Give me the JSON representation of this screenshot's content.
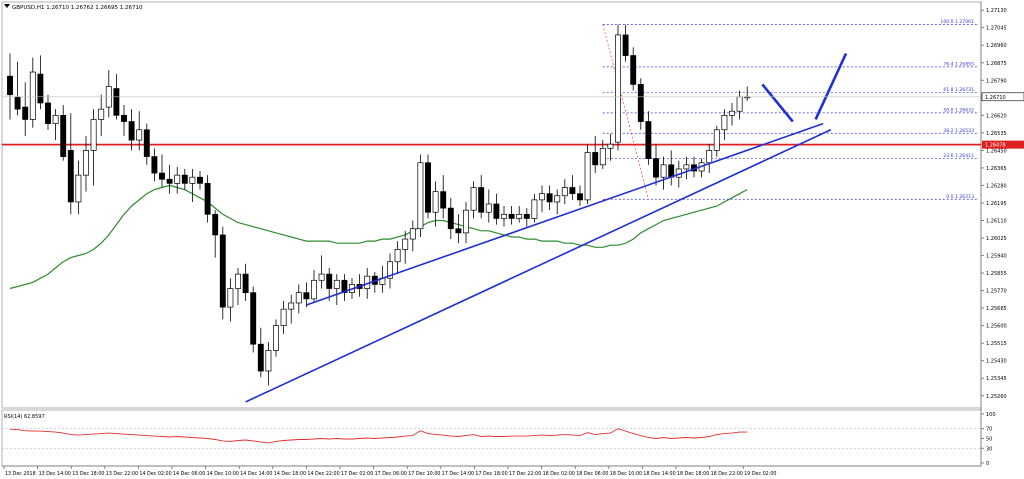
{
  "header": {
    "symbol_line": "GBPUSD,H1 1.26710 1.26762 1.26695 1.26710"
  },
  "colors": {
    "bull_body": "#ffffff",
    "bear_body": "#000000",
    "candle_outline": "#000000",
    "ma_line": "#2e8b2e",
    "trendline": "#1f2fd6",
    "resistance": "#e02020",
    "fib": "#3a3ad0",
    "rsi": "#e03030",
    "current_price_label_bg": "#ffffff"
  },
  "chart_data": [
    {
      "type": "candlestick",
      "title": "GBPUSD,H1",
      "ohlc_last": {
        "open": 1.2671,
        "high": 1.26762,
        "low": 1.26695,
        "close": 1.2671
      },
      "ylim": [
        1.2522,
        1.2716
      ],
      "y_ticks": [
        "1.27130",
        "1.27045",
        "1.26960",
        "1.26875",
        "1.26790",
        "1.26705",
        "1.26620",
        "1.26535",
        "1.26450",
        "1.26365",
        "1.26280",
        "1.26195",
        "1.26110",
        "1.26025",
        "1.25940",
        "1.25855",
        "1.25770",
        "1.25685",
        "1.25600",
        "1.25515",
        "1.25430",
        "1.25345",
        "1.25260"
      ],
      "x_tick_labels": [
        "13 Dec 2018",
        "13 Dec 14:00",
        "13 Dec 18:00",
        "13 Dec 22:00",
        "14 Dec 02:00",
        "14 Dec 06:00",
        "14 Dec 10:00",
        "14 Dec 14:00",
        "14 Dec 18:00",
        "14 Dec 22:00",
        "17 Dec 02:00",
        "17 Dec 06:00",
        "17 Dec 10:00",
        "17 Dec 14:00",
        "17 Dec 18:00",
        "17 Dec 22:00",
        "18 Dec 02:00",
        "18 Dec 06:00",
        "18 Dec 10:00",
        "18 Dec 14:00",
        "18 Dec 18:00",
        "18 Dec 22:00",
        "19 Dec 02:00"
      ],
      "candles": [
        [
          1.2681,
          1.2692,
          1.266,
          1.2672
        ],
        [
          1.2671,
          1.2688,
          1.2662,
          1.2665
        ],
        [
          1.2666,
          1.2678,
          1.2652,
          1.266
        ],
        [
          1.266,
          1.269,
          1.2656,
          1.2683
        ],
        [
          1.2682,
          1.2691,
          1.2665,
          1.2668
        ],
        [
          1.2668,
          1.2672,
          1.2655,
          1.2658
        ],
        [
          1.2658,
          1.2665,
          1.265,
          1.2662
        ],
        [
          1.2662,
          1.2667,
          1.264,
          1.2642
        ],
        [
          1.2645,
          1.2663,
          1.2614,
          1.262
        ],
        [
          1.262,
          1.264,
          1.2614,
          1.2633
        ],
        [
          1.2633,
          1.2652,
          1.2625,
          1.2645
        ],
        [
          1.2645,
          1.2665,
          1.2628,
          1.266
        ],
        [
          1.266,
          1.2672,
          1.2652,
          1.2665
        ],
        [
          1.2666,
          1.2684,
          1.2661,
          1.2676
        ],
        [
          1.2675,
          1.2682,
          1.266,
          1.2662
        ],
        [
          1.2662,
          1.2667,
          1.2652,
          1.2659
        ],
        [
          1.2659,
          1.2665,
          1.2645,
          1.265
        ],
        [
          1.265,
          1.2664,
          1.2645,
          1.2655
        ],
        [
          1.2655,
          1.2658,
          1.2638,
          1.2642
        ],
        [
          1.2642,
          1.2646,
          1.263,
          1.2634
        ],
        [
          1.2634,
          1.2643,
          1.2627,
          1.2631
        ],
        [
          1.2631,
          1.2638,
          1.2624,
          1.2629
        ],
        [
          1.2629,
          1.2637,
          1.2624,
          1.2633
        ],
        [
          1.2633,
          1.2636,
          1.2626,
          1.2629
        ],
        [
          1.2629,
          1.2636,
          1.262,
          1.2632
        ],
        [
          1.2632,
          1.2635,
          1.2626,
          1.2629
        ],
        [
          1.2629,
          1.2633,
          1.261,
          1.2614
        ],
        [
          1.2614,
          1.2616,
          1.2593,
          1.2604
        ],
        [
          1.2604,
          1.2608,
          1.2563,
          1.2569
        ],
        [
          1.2569,
          1.2583,
          1.2562,
          1.2578
        ],
        [
          1.2578,
          1.2588,
          1.257,
          1.2585
        ],
        [
          1.2585,
          1.259,
          1.2572,
          1.2576
        ],
        [
          1.2576,
          1.2579,
          1.2547,
          1.2551
        ],
        [
          1.2551,
          1.2559,
          1.2535,
          1.2538
        ],
        [
          1.2538,
          1.2552,
          1.2531,
          1.2548
        ],
        [
          1.2548,
          1.2563,
          1.2545,
          1.256
        ],
        [
          1.256,
          1.2572,
          1.2556,
          1.2568
        ],
        [
          1.2568,
          1.2575,
          1.2561,
          1.2571
        ],
        [
          1.2571,
          1.258,
          1.2566,
          1.2576
        ],
        [
          1.2576,
          1.2581,
          1.2569,
          1.2573
        ],
        [
          1.2573,
          1.2587,
          1.2571,
          1.2582
        ],
        [
          1.2582,
          1.2594,
          1.2578,
          1.2585
        ],
        [
          1.2585,
          1.2588,
          1.2572,
          1.2578
        ],
        [
          1.2578,
          1.2585,
          1.257,
          1.2582
        ],
        [
          1.2582,
          1.2585,
          1.2572,
          1.2576
        ],
        [
          1.2576,
          1.2583,
          1.2573,
          1.258
        ],
        [
          1.258,
          1.2585,
          1.2574,
          1.2578
        ],
        [
          1.2578,
          1.2588,
          1.2573,
          1.2584
        ],
        [
          1.2584,
          1.2586,
          1.2576,
          1.258
        ],
        [
          1.258,
          1.2589,
          1.2576,
          1.2583
        ],
        [
          1.2583,
          1.2595,
          1.2578,
          1.2591
        ],
        [
          1.2591,
          1.2601,
          1.2585,
          1.2597
        ],
        [
          1.2597,
          1.2606,
          1.259,
          1.2602
        ],
        [
          1.2602,
          1.2611,
          1.2596,
          1.2607
        ],
        [
          1.2607,
          1.2643,
          1.2603,
          1.2639
        ],
        [
          1.2639,
          1.2643,
          1.2612,
          1.2615
        ],
        [
          1.2615,
          1.263,
          1.2608,
          1.2625
        ],
        [
          1.2625,
          1.2633,
          1.2612,
          1.2617
        ],
        [
          1.2617,
          1.2622,
          1.2602,
          1.2607
        ],
        [
          1.2607,
          1.2614,
          1.26,
          1.2605
        ],
        [
          1.2605,
          1.262,
          1.26,
          1.2616
        ],
        [
          1.2616,
          1.263,
          1.2612,
          1.2627
        ],
        [
          1.2627,
          1.2633,
          1.2612,
          1.2615
        ],
        [
          1.2615,
          1.2626,
          1.261,
          1.2619
        ],
        [
          1.2619,
          1.2624,
          1.2609,
          1.2612
        ],
        [
          1.2612,
          1.2618,
          1.2608,
          1.2614
        ],
        [
          1.2614,
          1.2618,
          1.2609,
          1.2612
        ],
        [
          1.2612,
          1.2618,
          1.261,
          1.2614
        ],
        [
          1.2614,
          1.2617,
          1.2608,
          1.2612
        ],
        [
          1.2612,
          1.2624,
          1.261,
          1.2621
        ],
        [
          1.2621,
          1.2628,
          1.2615,
          1.2624
        ],
        [
          1.2624,
          1.2628,
          1.2616,
          1.262
        ],
        [
          1.262,
          1.2626,
          1.2614,
          1.2623
        ],
        [
          1.2623,
          1.2631,
          1.2619,
          1.2627
        ],
        [
          1.2627,
          1.2633,
          1.2621,
          1.2624
        ],
        [
          1.2624,
          1.2628,
          1.2618,
          1.2621
        ],
        [
          1.2621,
          1.2648,
          1.2619,
          1.2644
        ],
        [
          1.2644,
          1.2652,
          1.2634,
          1.2638
        ],
        [
          1.2638,
          1.265,
          1.2636,
          1.2646
        ],
        [
          1.2646,
          1.2653,
          1.264,
          1.2648
        ],
        [
          1.2649,
          1.2706,
          1.2645,
          1.2701
        ],
        [
          1.2701,
          1.2706,
          1.2688,
          1.2691
        ],
        [
          1.2691,
          1.2695,
          1.2674,
          1.2677
        ],
        [
          1.2677,
          1.268,
          1.2655,
          1.2659
        ],
        [
          1.2659,
          1.2664,
          1.2638,
          1.2641
        ],
        [
          1.2641,
          1.2648,
          1.2628,
          1.2632
        ],
        [
          1.2632,
          1.2642,
          1.2626,
          1.2638
        ],
        [
          1.2638,
          1.2645,
          1.2628,
          1.2632
        ],
        [
          1.2632,
          1.264,
          1.2627,
          1.2636
        ],
        [
          1.2636,
          1.2642,
          1.2631,
          1.2638
        ],
        [
          1.2638,
          1.2642,
          1.2632,
          1.2635
        ],
        [
          1.2635,
          1.2641,
          1.2632,
          1.2639
        ],
        [
          1.2639,
          1.2648,
          1.2634,
          1.2645
        ],
        [
          1.2645,
          1.2657,
          1.2642,
          1.2655
        ],
        [
          1.2655,
          1.2665,
          1.265,
          1.2662
        ],
        [
          1.2662,
          1.2668,
          1.2657,
          1.2664
        ],
        [
          1.2664,
          1.2674,
          1.266,
          1.2671
        ],
        [
          1.2671,
          1.2676,
          1.2669,
          1.2671
        ]
      ],
      "moving_average": [
        1.2578,
        1.2579,
        1.258,
        1.2581,
        1.2583,
        1.2585,
        1.2588,
        1.2591,
        1.2593,
        1.2594,
        1.2595,
        1.2597,
        1.26,
        1.2604,
        1.2609,
        1.2614,
        1.2618,
        1.2621,
        1.2624,
        1.2626,
        1.2627,
        1.2628,
        1.2627,
        1.2626,
        1.2624,
        1.2622,
        1.262,
        1.2617,
        1.2614,
        1.2612,
        1.261,
        1.2609,
        1.2608,
        1.2607,
        1.2606,
        1.2605,
        1.2604,
        1.2603,
        1.2602,
        1.2601,
        1.2601,
        1.2601,
        1.2601,
        1.26,
        1.26,
        1.26,
        1.26,
        1.2601,
        1.2601,
        1.2602,
        1.2602,
        1.2603,
        1.2604,
        1.2606,
        1.2608,
        1.261,
        1.2611,
        1.2611,
        1.261,
        1.2609,
        1.2608,
        1.2607,
        1.2606,
        1.2606,
        1.2605,
        1.2604,
        1.2603,
        1.2603,
        1.2602,
        1.2602,
        1.2601,
        1.2601,
        1.2601,
        1.26,
        1.26,
        1.2599,
        1.2599,
        1.2598,
        1.2598,
        1.2599,
        1.2599,
        1.26,
        1.2602,
        1.2605,
        1.2607,
        1.2609,
        1.2611,
        1.2612,
        1.2613,
        1.2614,
        1.2615,
        1.2616,
        1.2617,
        1.2618,
        1.262,
        1.2622,
        1.2624,
        1.2626
      ],
      "current_price_label": "1.26710",
      "resistance_label": "1.26478",
      "resistance_value": 1.26478,
      "fibonacci": [
        {
          "label": "100.0 1.27061",
          "value": 1.27061
        },
        {
          "label": "76.4 1.26855",
          "value": 1.26855
        },
        {
          "label": "61.8 1.26731",
          "value": 1.26731
        },
        {
          "label": "50.0 1.26632",
          "value": 1.26632
        },
        {
          "label": "38.2 1.26533",
          "value": 1.26533
        },
        {
          "label": "23.6 1.26411",
          "value": 1.26411
        },
        {
          "label": "0.0 1.26213",
          "value": 1.26213
        }
      ],
      "trendlines": [
        {
          "from": [
            31,
            1.2523
          ],
          "to": [
            108,
            1.2655
          ]
        },
        {
          "from": [
            39,
            1.257
          ],
          "to": [
            107,
            1.2658
          ]
        }
      ],
      "projection": [
        [
          99,
          1.2677
        ],
        [
          103,
          1.2659
        ],
        [
          106,
          1.266
        ],
        [
          110,
          1.2692
        ]
      ]
    },
    {
      "type": "line",
      "title": "RSI(14) 62.8597",
      "ylim": [
        0,
        100
      ],
      "y_ticks": [
        "100",
        "70",
        "50",
        "30",
        "0"
      ],
      "levels": [
        70,
        30
      ],
      "values": [
        69,
        68,
        66,
        65,
        65,
        64,
        63,
        61,
        58,
        57,
        58,
        59,
        60,
        61,
        60,
        59,
        58,
        57,
        56,
        55,
        54,
        53,
        54,
        53,
        52,
        51,
        50,
        48,
        45,
        44,
        46,
        47,
        45,
        43,
        41,
        44,
        46,
        47,
        48,
        48,
        49,
        50,
        49,
        50,
        49,
        49,
        50,
        51,
        50,
        51,
        52,
        53,
        55,
        56,
        66,
        60,
        58,
        57,
        55,
        54,
        56,
        58,
        54,
        55,
        54,
        54,
        55,
        55,
        55,
        56,
        57,
        56,
        57,
        58,
        57,
        56,
        62,
        58,
        60,
        61,
        70,
        65,
        60,
        56,
        52,
        50,
        52,
        50,
        51,
        52,
        51,
        52,
        54,
        58,
        60,
        61,
        63,
        63
      ]
    }
  ]
}
